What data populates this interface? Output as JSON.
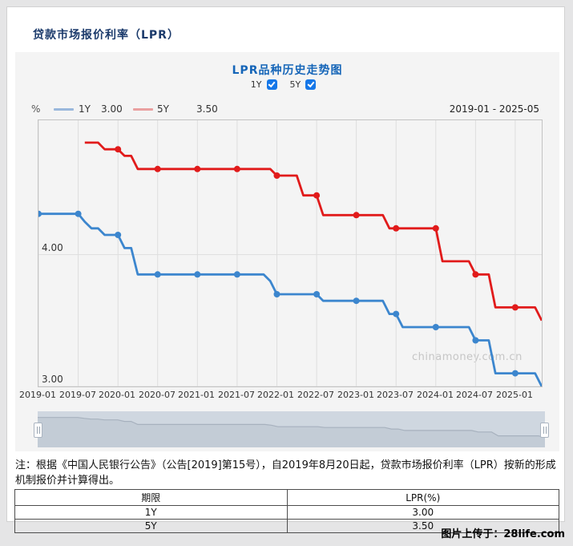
{
  "page": {
    "title": "贷款市场报价利率（LPR）"
  },
  "chart": {
    "title": "LPR品种历史走势图",
    "checkboxes": [
      {
        "label": "1Y",
        "checked": true
      },
      {
        "label": "5Y",
        "checked": true
      }
    ],
    "checkbox_color": "#1577e8",
    "unit": "%",
    "legend": [
      {
        "label": "1Y",
        "value": "3.00",
        "swatch_color": "#9ab8dc"
      },
      {
        "label": "5Y",
        "value": "3.50",
        "swatch_color": "#e9a0a0"
      }
    ],
    "range_label": "2019-01 - 2025-05",
    "watermark": "chinamoney.com.cn"
  },
  "chart_data": {
    "type": "line",
    "title": "LPR品种历史走势图",
    "ylabel": "%",
    "ylim": [
      3.0,
      5.02
    ],
    "yticks": [
      4.0,
      3.0
    ],
    "xticks": [
      "2019-01",
      "2019-07",
      "2020-01",
      "2020-07",
      "2021-01",
      "2021-07",
      "2022-01",
      "2022-07",
      "2023-01",
      "2023-07",
      "2024-01",
      "2024-07",
      "2025-01"
    ],
    "marker_every": 6,
    "grid": true,
    "x": [
      "2019-01",
      "2019-02",
      "2019-03",
      "2019-04",
      "2019-05",
      "2019-06",
      "2019-07",
      "2019-08",
      "2019-09",
      "2019-10",
      "2019-11",
      "2019-12",
      "2020-01",
      "2020-02",
      "2020-03",
      "2020-04",
      "2020-05",
      "2020-06",
      "2020-07",
      "2020-08",
      "2020-09",
      "2020-10",
      "2020-11",
      "2020-12",
      "2021-01",
      "2021-02",
      "2021-03",
      "2021-04",
      "2021-05",
      "2021-06",
      "2021-07",
      "2021-08",
      "2021-09",
      "2021-10",
      "2021-11",
      "2021-12",
      "2022-01",
      "2022-02",
      "2022-03",
      "2022-04",
      "2022-05",
      "2022-06",
      "2022-07",
      "2022-08",
      "2022-09",
      "2022-10",
      "2022-11",
      "2022-12",
      "2023-01",
      "2023-02",
      "2023-03",
      "2023-04",
      "2023-05",
      "2023-06",
      "2023-07",
      "2023-08",
      "2023-09",
      "2023-10",
      "2023-11",
      "2023-12",
      "2024-01",
      "2024-02",
      "2024-03",
      "2024-04",
      "2024-05",
      "2024-06",
      "2024-07",
      "2024-08",
      "2024-09",
      "2024-10",
      "2024-11",
      "2024-12",
      "2025-01",
      "2025-02",
      "2025-03",
      "2025-04",
      "2025-05"
    ],
    "series": [
      {
        "name": "1Y",
        "color": "#3c86ce",
        "values": [
          4.31,
          4.31,
          4.31,
          4.31,
          4.31,
          4.31,
          4.31,
          4.25,
          4.2,
          4.2,
          4.15,
          4.15,
          4.15,
          4.05,
          4.05,
          3.85,
          3.85,
          3.85,
          3.85,
          3.85,
          3.85,
          3.85,
          3.85,
          3.85,
          3.85,
          3.85,
          3.85,
          3.85,
          3.85,
          3.85,
          3.85,
          3.85,
          3.85,
          3.85,
          3.85,
          3.8,
          3.7,
          3.7,
          3.7,
          3.7,
          3.7,
          3.7,
          3.7,
          3.65,
          3.65,
          3.65,
          3.65,
          3.65,
          3.65,
          3.65,
          3.65,
          3.65,
          3.65,
          3.55,
          3.55,
          3.45,
          3.45,
          3.45,
          3.45,
          3.45,
          3.45,
          3.45,
          3.45,
          3.45,
          3.45,
          3.45,
          3.35,
          3.35,
          3.35,
          3.1,
          3.1,
          3.1,
          3.1,
          3.1,
          3.1,
          3.1,
          3.0
        ]
      },
      {
        "name": "5Y",
        "color": "#e11b1b",
        "values": [
          null,
          null,
          null,
          null,
          null,
          null,
          null,
          4.85,
          4.85,
          4.85,
          4.8,
          4.8,
          4.8,
          4.75,
          4.75,
          4.65,
          4.65,
          4.65,
          4.65,
          4.65,
          4.65,
          4.65,
          4.65,
          4.65,
          4.65,
          4.65,
          4.65,
          4.65,
          4.65,
          4.65,
          4.65,
          4.65,
          4.65,
          4.65,
          4.65,
          4.65,
          4.6,
          4.6,
          4.6,
          4.6,
          4.45,
          4.45,
          4.45,
          4.3,
          4.3,
          4.3,
          4.3,
          4.3,
          4.3,
          4.3,
          4.3,
          4.3,
          4.3,
          4.2,
          4.2,
          4.2,
          4.2,
          4.2,
          4.2,
          4.2,
          4.2,
          3.95,
          3.95,
          3.95,
          3.95,
          3.95,
          3.85,
          3.85,
          3.85,
          3.6,
          3.6,
          3.6,
          3.6,
          3.6,
          3.6,
          3.6,
          3.5
        ]
      }
    ]
  },
  "note": {
    "text": "注：根据《中国人民银行公告》（公告[2019]第15号），自2019年8月20日起，贷款市场报价利率（LPR）按新的形成机制报价并计算得出。"
  },
  "table": {
    "headers": [
      "期限",
      "LPR(%)"
    ],
    "rows": [
      [
        "1Y",
        "3.00"
      ],
      [
        "5Y",
        "3.50"
      ]
    ]
  },
  "footer": {
    "upload_label": "图片上传于：28life.com"
  }
}
